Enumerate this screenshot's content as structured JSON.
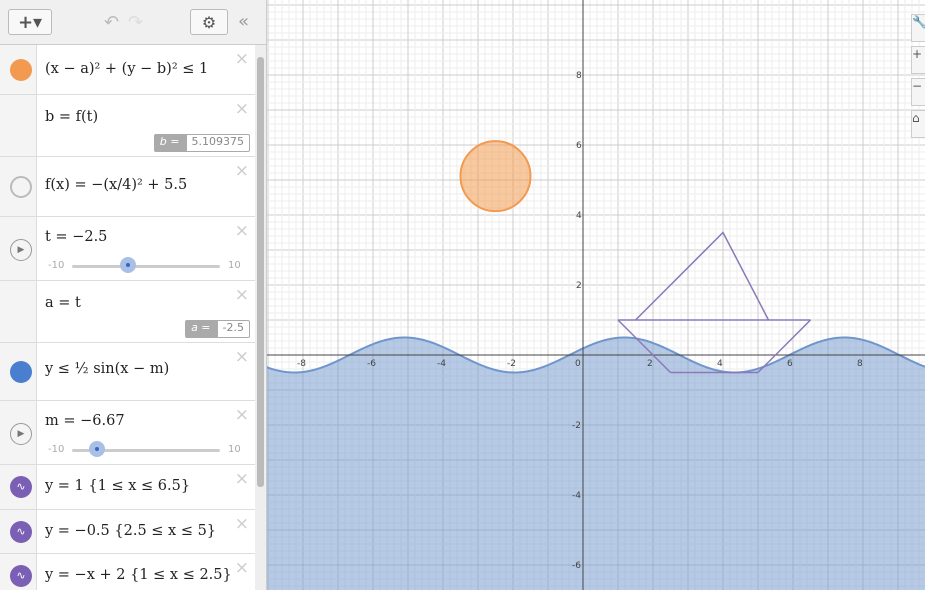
{
  "toolbar": {
    "add_label": "+▾",
    "undo": "↶",
    "redo": "↷",
    "settings": "⚙",
    "collapse": "«"
  },
  "expressions": [
    {
      "expr": "(x − a)² + (y − b)² ≤ 1",
      "icon": "filled-circle-orange",
      "color": "#f29a50"
    },
    {
      "expr": "b = f(t)",
      "value_label": "b =",
      "value": "5.109375"
    },
    {
      "expr": "f(x) = −(x/4)² + 5.5",
      "icon": "hidden-circle"
    },
    {
      "expr": "t = −2.5",
      "icon": "play",
      "slider": {
        "min": "-10",
        "max": "10",
        "value": -2.5
      }
    },
    {
      "expr": "a = t",
      "value_label": "a =",
      "value": "-2.5"
    },
    {
      "expr": "y ≤ ½ sin(x − m)",
      "icon": "filled-circle-blue",
      "color": "#4a7fd0"
    },
    {
      "expr": "m = −6.67",
      "icon": "play",
      "slider": {
        "min": "-10",
        "max": "10",
        "value": -6.67
      }
    },
    {
      "expr": "y = 1 {1 ≤ x ≤ 6.5}",
      "icon": "wave-purple",
      "color": "#7b5fb5"
    },
    {
      "expr": "y = −0.5 {2.5 ≤ x ≤ 5}",
      "icon": "wave-purple",
      "color": "#7b5fb5"
    },
    {
      "expr": "y = −x + 2 {1 ≤ x ≤ 2.5}",
      "icon": "wave-purple",
      "color": "#7b5fb5"
    }
  ],
  "close_glyph": "×",
  "graph": {
    "x_ticks": [
      "-8",
      "-6",
      "-4",
      "-2",
      "0",
      "2",
      "4",
      "6",
      "8"
    ],
    "y_ticks": [
      "8",
      "6",
      "4",
      "2",
      "-2",
      "-4",
      "-6"
    ],
    "circle": {
      "a": -2.5,
      "b": 5.109375,
      "r": 1,
      "color": "#f29a50"
    },
    "wave": {
      "m": -6.67,
      "amp": 0.5,
      "color": "#6f96cc"
    },
    "boat_color": "#8a78b8"
  },
  "right_tools": [
    "wrench-icon",
    "zoom-in-icon",
    "zoom-out-icon",
    "home-icon"
  ]
}
